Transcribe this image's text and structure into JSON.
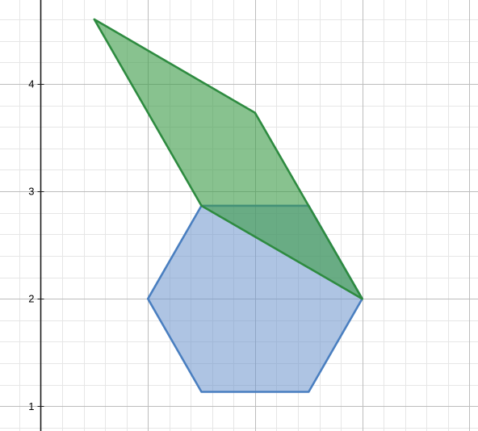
{
  "chart_data": {
    "type": "polygon-plot",
    "title": "",
    "xlabel": "",
    "ylabel": "",
    "xlim": [
      -0.38,
      4.08
    ],
    "ylim": [
      0.77,
      4.78
    ],
    "x_major_step": 1,
    "y_major_step": 1,
    "minor_per_major": 5,
    "grid": true,
    "y_tick_labels": [
      {
        "value": 1,
        "label": "1"
      },
      {
        "value": 2,
        "label": "2"
      },
      {
        "value": 3,
        "label": "3"
      },
      {
        "value": 4,
        "label": "4"
      }
    ],
    "shapes": [
      {
        "id": "hexagon",
        "fill": "#6b93cc",
        "stroke": "#4a7fc0",
        "fill_opacity": 0.55,
        "points": [
          [
            1,
            2
          ],
          [
            1.5,
            2.866
          ],
          [
            2.5,
            2.866
          ],
          [
            3,
            2
          ],
          [
            2.5,
            1.134
          ],
          [
            1.5,
            1.134
          ]
        ]
      },
      {
        "id": "quadrilateral",
        "fill": "#3f9d4a",
        "stroke": "#2e8b40",
        "fill_opacity": 0.62,
        "points": [
          [
            0.5,
            4.6
          ],
          [
            2,
            3.73
          ],
          [
            3,
            2
          ],
          [
            1.5,
            2.866
          ]
        ]
      }
    ]
  }
}
